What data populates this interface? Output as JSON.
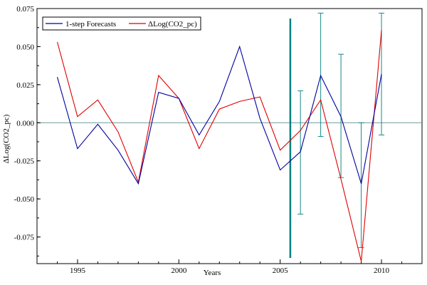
{
  "chart_data": {
    "type": "line",
    "xlabel": "Years",
    "ylabel": "ΔLog(CO2_pc)",
    "xlim": [
      1993,
      2012
    ],
    "ylim": [
      -0.0925,
      0.075
    ],
    "x_ticks": [
      1995,
      2000,
      2005,
      2010
    ],
    "y_ticks": [
      0.075,
      0.05,
      0.025,
      0.0,
      -0.025,
      -0.05,
      -0.075
    ],
    "y_tick_labels": [
      "0.075",
      "0.050",
      "0.025",
      "0.000",
      "-0.025",
      "-0.050",
      "-0.075"
    ],
    "grid": false,
    "legend_position": "top-left",
    "zero_line": 0.0,
    "forecast_origin": 2005.5,
    "series": [
      {
        "name": "1-step Forecasts",
        "color": "#0000a0",
        "x": [
          1994,
          1995,
          1996,
          1997,
          1998,
          1999,
          2000,
          2001,
          2002,
          2003,
          2004,
          2005,
          2006,
          2007,
          2008,
          2009,
          2010
        ],
        "y": [
          0.03,
          -0.017,
          -0.001,
          -0.018,
          -0.04,
          0.02,
          0.016,
          -0.008,
          0.014,
          0.05,
          0.003,
          -0.031,
          -0.019,
          0.031,
          0.004,
          -0.04,
          0.032
        ]
      },
      {
        "name": "ΔLog(CO2_pc)",
        "color": "#e00000",
        "x": [
          1994,
          1995,
          1996,
          1997,
          1998,
          1999,
          2000,
          2001,
          2002,
          2003,
          2004,
          2005,
          2006,
          2007,
          2008,
          2009,
          2010
        ],
        "y": [
          0.053,
          0.004,
          0.015,
          -0.006,
          -0.039,
          0.031,
          0.016,
          -0.017,
          0.009,
          0.014,
          0.017,
          -0.018,
          -0.005,
          0.015,
          -0.037,
          -0.091,
          0.061
        ]
      }
    ],
    "error_bars": {
      "color": "#178a8a",
      "x": [
        2006,
        2007,
        2008,
        2009,
        2010
      ],
      "center": [
        -0.019,
        0.031,
        0.004,
        -0.04,
        0.032
      ],
      "low": [
        -0.06,
        -0.009,
        -0.036,
        -0.082,
        -0.008
      ],
      "high": [
        0.021,
        0.072,
        0.045,
        0.0,
        0.072
      ]
    },
    "colors": {
      "axis": "#000000",
      "zero_line": "#6a9a9a",
      "forecast_line": "#008080"
    }
  }
}
